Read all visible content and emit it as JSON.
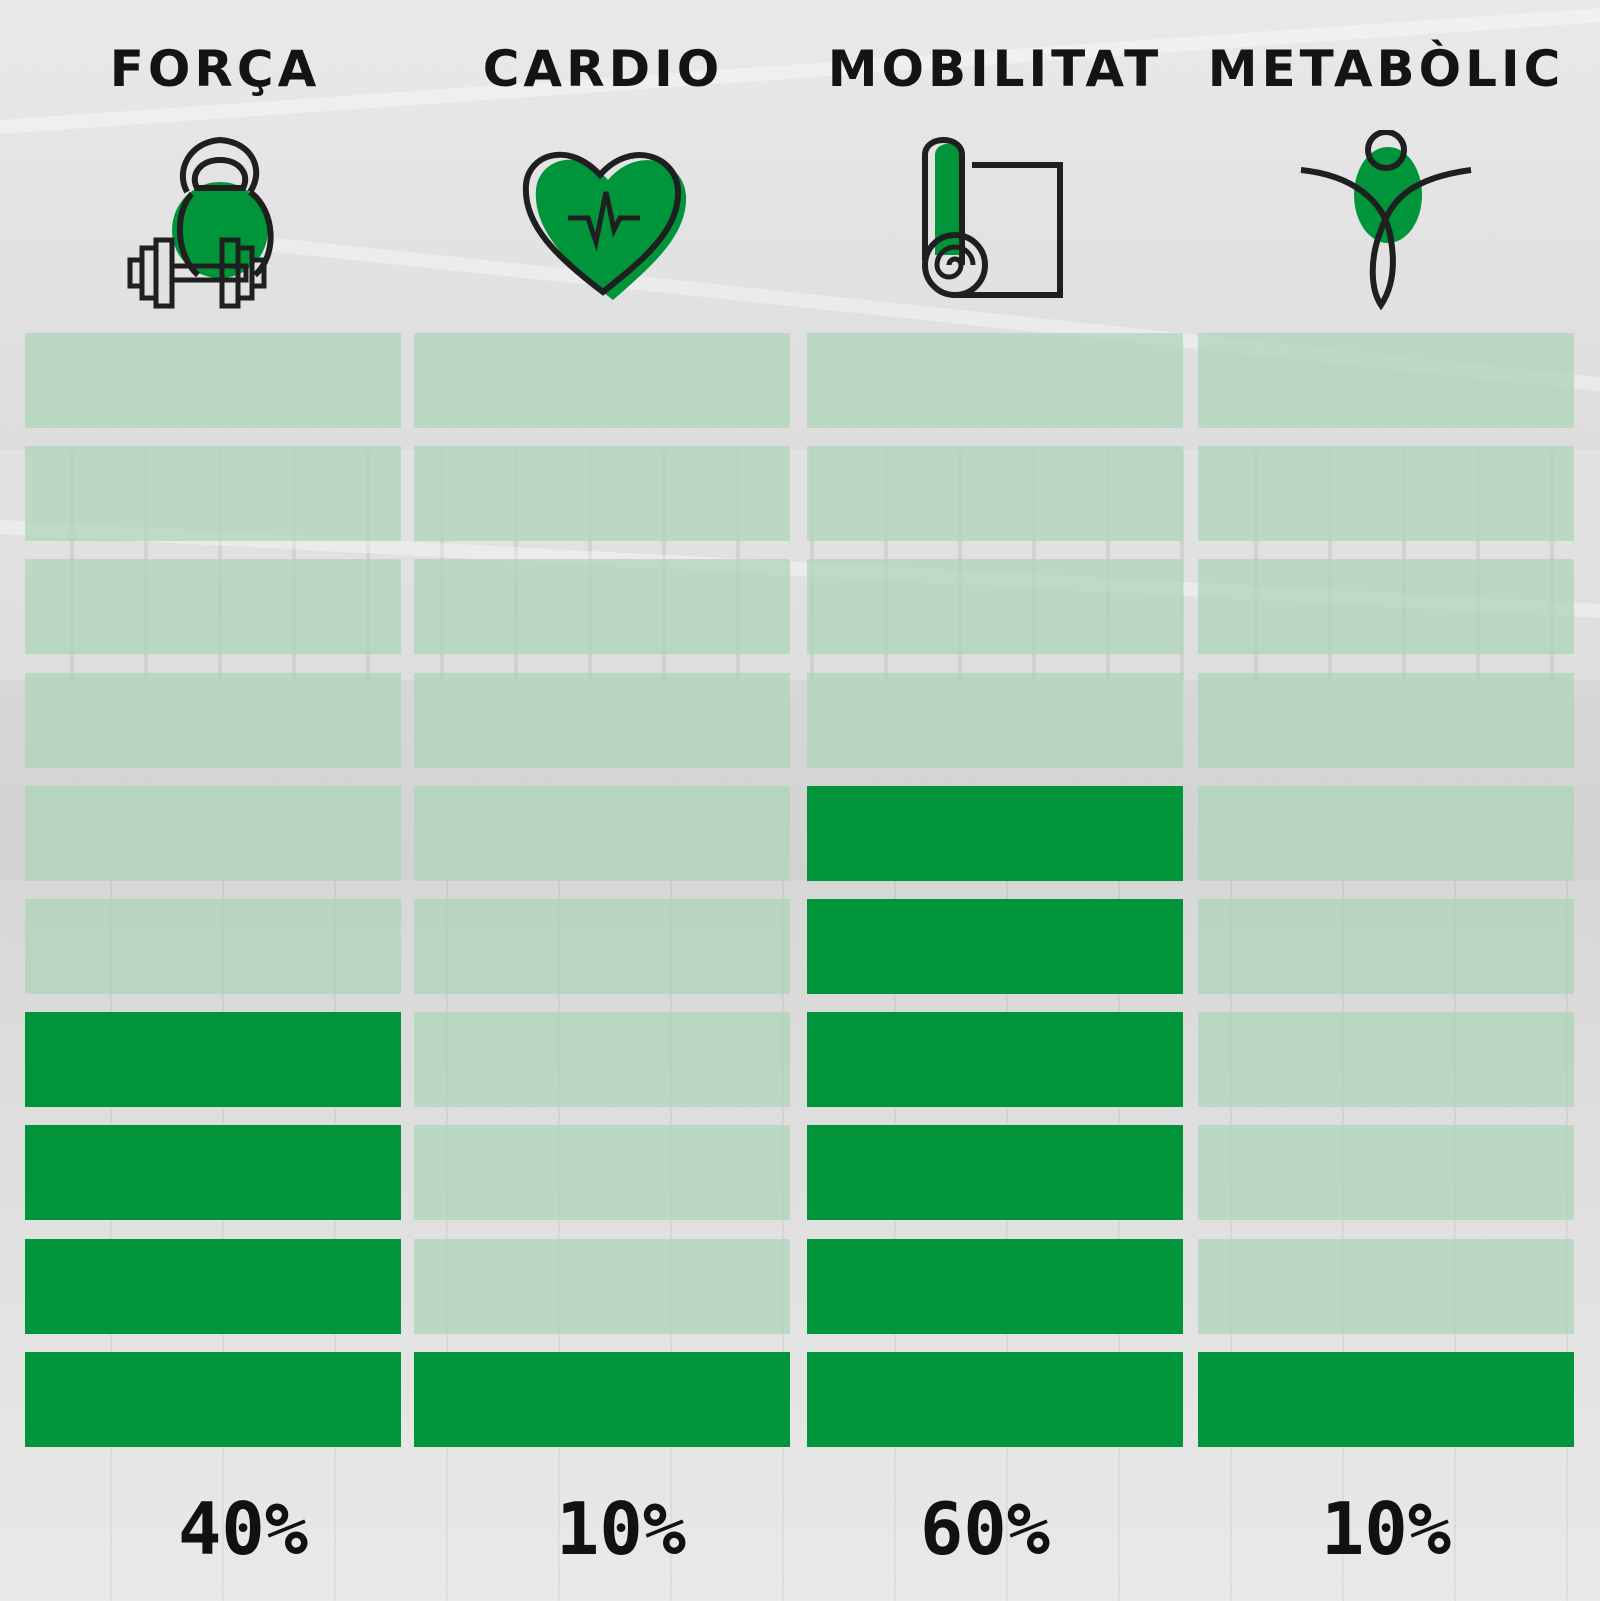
{
  "colors": {
    "filled": "#00953a",
    "empty": "rgba(172, 212, 184, 0.72)",
    "icon_stroke": "#1f1f1f",
    "icon_fill": "#00953a"
  },
  "chart_data": {
    "type": "bar",
    "categories": [
      "FORÇA",
      "CARDIO",
      "MOBILITAT",
      "METABÒLIC"
    ],
    "values": [
      40,
      10,
      60,
      10
    ],
    "value_labels": [
      "40%",
      "10%",
      "60%",
      "10%"
    ],
    "ylim": [
      0,
      100
    ],
    "segments_per_bar": 10,
    "icons": [
      "kettlebell-dumbbell-icon",
      "heart-pulse-icon",
      "yoga-mat-icon",
      "stretching-person-icon"
    ]
  }
}
